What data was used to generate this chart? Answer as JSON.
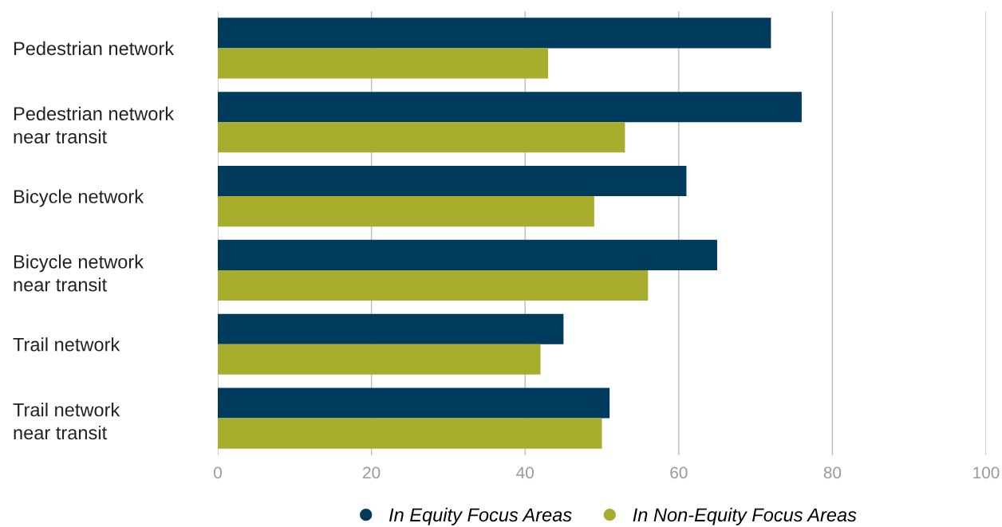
{
  "chart_data": {
    "type": "bar",
    "orientation": "horizontal",
    "categories": [
      "Pedestrian network",
      "Pedestrian network\nnear transit",
      "Bicycle network",
      "Bicycle network\nnear transit",
      "Trail network",
      "Trail network\nnear transit"
    ],
    "series": [
      {
        "name": "In Equity Focus Areas",
        "color": "#003a5d",
        "values": [
          72,
          76,
          61,
          65,
          45,
          51
        ]
      },
      {
        "name": "In Non-Equity Focus Areas",
        "color": "#a8ad2e",
        "values": [
          43,
          53,
          49,
          56,
          42,
          50
        ]
      }
    ],
    "xlim": [
      0,
      100
    ],
    "xticks": [
      0,
      20,
      40,
      60,
      80,
      100
    ],
    "grid": "x",
    "legend": "bottom"
  }
}
